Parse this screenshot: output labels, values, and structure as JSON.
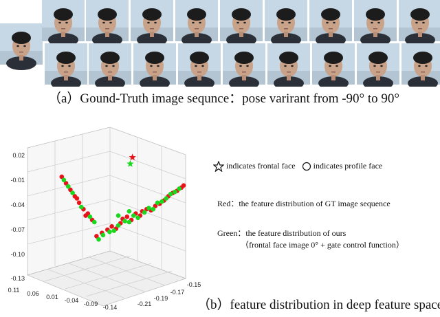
{
  "figure": {
    "caption_a": "（a）Gound-Truth  image sequnce：pose varirant from -90° to 90°",
    "caption_b": "（b）feature distribution in deep feature space",
    "legend": {
      "frontal_text": "indicates frontal face",
      "profile_text": "indicates profile face",
      "red_text": "Red：the feature distribution of GT image sequence",
      "green_text": "Green：the feature distribution of ours",
      "green_note": "（frontal face  image  0° +  gate control function）"
    },
    "colors": {
      "red": "#e8141b",
      "green": "#19d81e",
      "background_sky": "#c6d8e6"
    }
  },
  "chart_data": {
    "type": "scatter",
    "projection": "3d",
    "z_ticks": [
      "0.02",
      "-0.01",
      "-0.04",
      "-0.07",
      "-0.10",
      "-0.13"
    ],
    "x_ticks": [
      "0.11",
      "0.06",
      "0.01",
      "-0.04",
      "-0.09",
      "-0.14"
    ],
    "y_ticks": [
      "-0.15",
      "-0.17",
      "-0.19",
      "-0.21"
    ],
    "grid": true,
    "series": [
      {
        "color": "red",
        "points": [
          [
            0.3,
            0.15
          ],
          [
            0.35,
            0.18
          ],
          [
            0.4,
            0.21
          ],
          [
            0.44,
            0.24
          ],
          [
            0.48,
            0.22
          ],
          [
            0.52,
            0.27
          ],
          [
            0.54,
            0.31
          ],
          [
            0.58,
            0.33
          ],
          [
            0.62,
            0.3
          ],
          [
            0.66,
            0.36
          ],
          [
            0.7,
            0.34
          ],
          [
            0.72,
            0.38
          ],
          [
            0.76,
            0.4
          ],
          [
            0.8,
            0.39
          ],
          [
            0.84,
            0.43
          ],
          [
            0.88,
            0.45
          ],
          [
            0.92,
            0.48
          ],
          [
            0.96,
            0.52
          ],
          [
            1.0,
            0.55
          ],
          [
            1.04,
            0.57
          ],
          [
            1.08,
            0.6
          ],
          [
            1.1,
            0.62
          ],
          [
            0.26,
            0.3
          ],
          [
            0.22,
            0.36
          ],
          [
            0.18,
            0.4
          ],
          [
            0.14,
            0.46
          ],
          [
            0.1,
            0.52
          ],
          [
            0.06,
            0.58
          ],
          [
            0.02,
            0.64
          ],
          [
            -0.02,
            0.7
          ],
          [
            0.2,
            0.34
          ],
          [
            0.12,
            0.5
          ]
        ],
        "star": [
          0.63,
          0.88
        ]
      },
      {
        "color": "green",
        "points": [
          [
            0.32,
            0.12
          ],
          [
            0.36,
            0.16
          ],
          [
            0.42,
            0.19
          ],
          [
            0.46,
            0.2
          ],
          [
            0.5,
            0.25
          ],
          [
            0.56,
            0.29
          ],
          [
            0.6,
            0.28
          ],
          [
            0.64,
            0.34
          ],
          [
            0.68,
            0.32
          ],
          [
            0.74,
            0.37
          ],
          [
            0.78,
            0.41
          ],
          [
            0.82,
            0.4
          ],
          [
            0.86,
            0.46
          ],
          [
            0.9,
            0.47
          ],
          [
            0.94,
            0.5
          ],
          [
            0.98,
            0.54
          ],
          [
            1.02,
            0.56
          ],
          [
            1.06,
            0.59
          ],
          [
            0.28,
            0.28
          ],
          [
            0.24,
            0.33
          ],
          [
            0.16,
            0.42
          ],
          [
            0.08,
            0.55
          ],
          [
            0.04,
            0.61
          ],
          [
            0.0,
            0.67
          ],
          [
            0.6,
            0.38
          ],
          [
            0.5,
            0.34
          ]
        ],
        "star": [
          0.61,
          0.82
        ]
      }
    ]
  }
}
